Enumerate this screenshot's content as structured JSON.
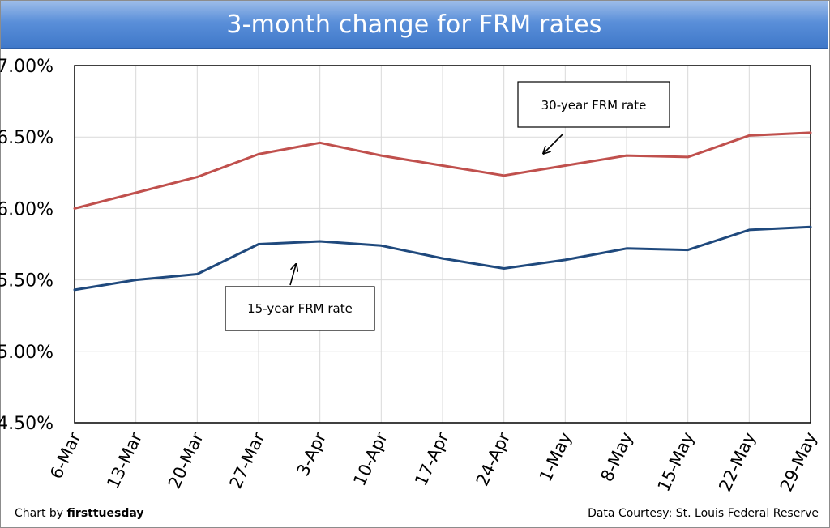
{
  "title": "3-month change for FRM rates",
  "footer": {
    "credit_prefix": "Chart by ",
    "credit_brand": "firsttuesday",
    "source": "Data Courtesy: St. Louis Federal Reserve"
  },
  "colors": {
    "series_30yr": "#c0504d",
    "series_15yr": "#1f497d",
    "grid": "#d9d9d9"
  },
  "chart_data": {
    "type": "line",
    "title": "3-month change for FRM rates",
    "xlabel": "",
    "ylabel": "",
    "ylim": [
      4.5,
      7.0
    ],
    "ytick_values": [
      4.5,
      5.0,
      5.5,
      6.0,
      6.5,
      7.0
    ],
    "ytick_labels": [
      "4.50%",
      "5.00%",
      "5.50%",
      "6.00%",
      "6.50%",
      "7.00%"
    ],
    "grid": true,
    "categories": [
      "6-Mar",
      "13-Mar",
      "20-Mar",
      "27-Mar",
      "3-Apr",
      "10-Apr",
      "17-Apr",
      "24-Apr",
      "1-May",
      "8-May",
      "15-May",
      "22-May",
      "29-May"
    ],
    "series": [
      {
        "name": "30-year FRM rate",
        "values": [
          6.0,
          6.11,
          6.22,
          6.38,
          6.46,
          6.37,
          6.3,
          6.23,
          6.3,
          6.37,
          6.36,
          6.51,
          6.53
        ]
      },
      {
        "name": "15-year FRM rate",
        "values": [
          5.43,
          5.5,
          5.54,
          5.75,
          5.77,
          5.74,
          5.65,
          5.58,
          5.64,
          5.72,
          5.71,
          5.85,
          5.87
        ]
      }
    ],
    "annotations": [
      {
        "text": "30-year FRM rate",
        "series": 0
      },
      {
        "text": "15-year FRM rate",
        "series": 1
      }
    ]
  }
}
